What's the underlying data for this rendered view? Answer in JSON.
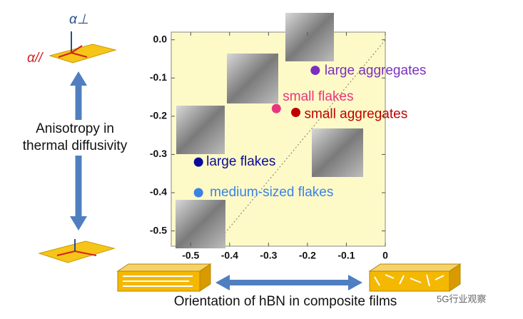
{
  "chart_data": {
    "type": "scatter",
    "xlim": [
      -0.55,
      0
    ],
    "ylim": [
      -0.54,
      0.02
    ],
    "xticks": [
      -0.5,
      -0.4,
      -0.3,
      -0.2,
      -0.1,
      0
    ],
    "yticks": [
      {
        "value": 0,
        "label": "0.0"
      },
      -0.1,
      -0.2,
      -0.3,
      -0.4,
      -0.5
    ],
    "series": [
      {
        "name": "large aggregates",
        "color": "#7b2fbf",
        "x": [
          -0.18
        ],
        "values": [
          -0.08
        ]
      },
      {
        "name": "small flakes",
        "color": "#e8357f",
        "x": [
          -0.28
        ],
        "values": [
          -0.18
        ]
      },
      {
        "name": "small aggregates",
        "color": "#c00000",
        "x": [
          -0.23
        ],
        "values": [
          -0.19
        ]
      },
      {
        "name": "large flakes",
        "color": "#0a0a9a",
        "x": [
          -0.48
        ],
        "values": [
          -0.32
        ]
      },
      {
        "name": "medium-sized flakes",
        "color": "#3a82e4",
        "x": [
          -0.48
        ],
        "values": [
          -0.4
        ]
      }
    ],
    "annotations": [
      "Anisotropy in",
      "thermal diffusivity",
      "Orientation of hBN in composite films",
      "α⊥",
      "α//",
      "5G行业观察"
    ]
  }
}
